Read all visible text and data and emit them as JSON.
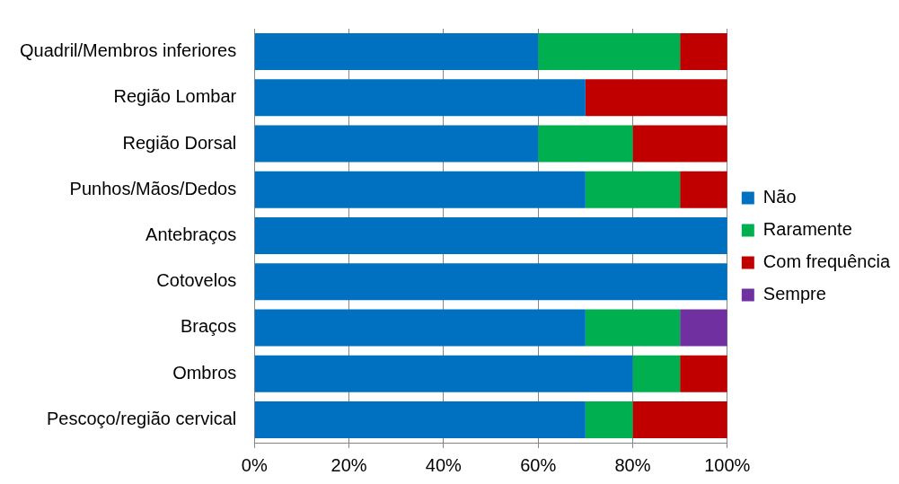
{
  "chart_data": {
    "type": "bar",
    "orientation": "horizontal",
    "stacked": true,
    "categories": [
      "Quadril/Membros inferiores",
      "Região Lombar",
      "Região Dorsal",
      "Punhos/Mãos/Dedos",
      "Antebraços",
      "Cotovelos",
      "Braços",
      "Ombros",
      "Pescoço/região cervical"
    ],
    "series": [
      {
        "name": "Não",
        "color": "#0070c0",
        "values": [
          60,
          70,
          60,
          70,
          100,
          100,
          70,
          80,
          70
        ]
      },
      {
        "name": "Raramente",
        "color": "#00b050",
        "values": [
          30,
          0,
          20,
          20,
          0,
          0,
          20,
          10,
          10
        ]
      },
      {
        "name": "Com frequência",
        "color": "#c00000",
        "values": [
          10,
          30,
          20,
          10,
          0,
          0,
          0,
          10,
          20
        ]
      },
      {
        "name": "Sempre",
        "color": "#7030a0",
        "values": [
          0,
          0,
          0,
          0,
          0,
          0,
          10,
          0,
          0
        ]
      }
    ],
    "xlim": [
      0,
      100
    ],
    "xticks": [
      {
        "value": 0,
        "label": "0%"
      },
      {
        "value": 20,
        "label": "20%"
      },
      {
        "value": 40,
        "label": "40%"
      },
      {
        "value": 60,
        "label": "60%"
      },
      {
        "value": 80,
        "label": "80%"
      },
      {
        "value": 100,
        "label": "100%"
      }
    ],
    "grid": "x",
    "legend": "right"
  }
}
